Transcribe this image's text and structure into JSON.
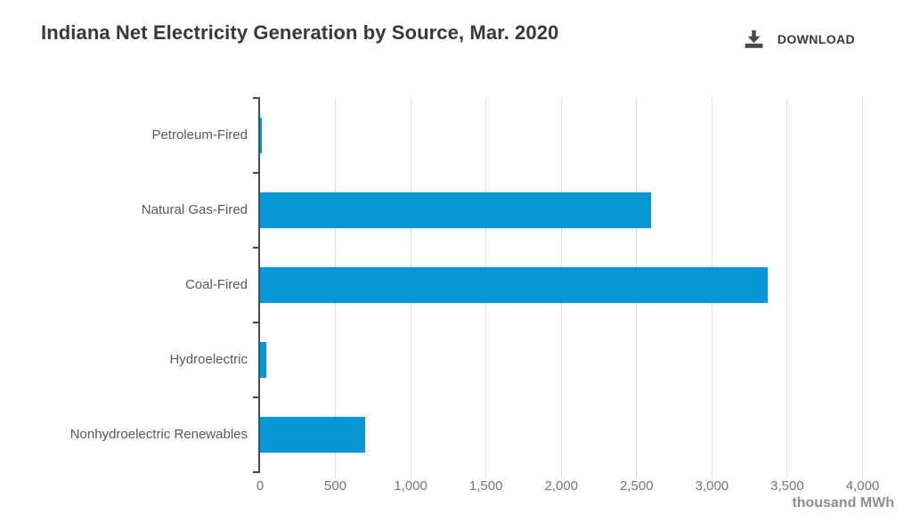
{
  "header": {
    "title": "Indiana Net Electricity Generation by Source, Mar. 2020",
    "download_label": "DOWNLOAD"
  },
  "chart_data": {
    "type": "bar",
    "orientation": "horizontal",
    "title": "Indiana Net Electricity Generation by Source, Mar. 2020",
    "categories": [
      "Petroleum-Fired",
      "Natural Gas-Fired",
      "Coal-Fired",
      "Hydroelectric",
      "Nonhydroelectric Renewables"
    ],
    "values": [
      10,
      2595,
      3370,
      40,
      700
    ],
    "xlabel": "thousand MWh",
    "ylabel": "",
    "xlim": [
      0,
      4000
    ],
    "xticks": [
      0,
      500,
      1000,
      1500,
      2000,
      2500,
      3000,
      3500,
      4000
    ],
    "xtick_labels": [
      "0",
      "500",
      "1,000",
      "1,500",
      "2,000",
      "2,500",
      "3,000",
      "3,500",
      "4,000"
    ],
    "grid": true,
    "legend": "none",
    "bar_color": "#0996d4",
    "axis_color": "#4a4a4a",
    "gridline_color": "#e0e0e0"
  },
  "icons": {
    "download": "download-arrow-into-tray"
  }
}
